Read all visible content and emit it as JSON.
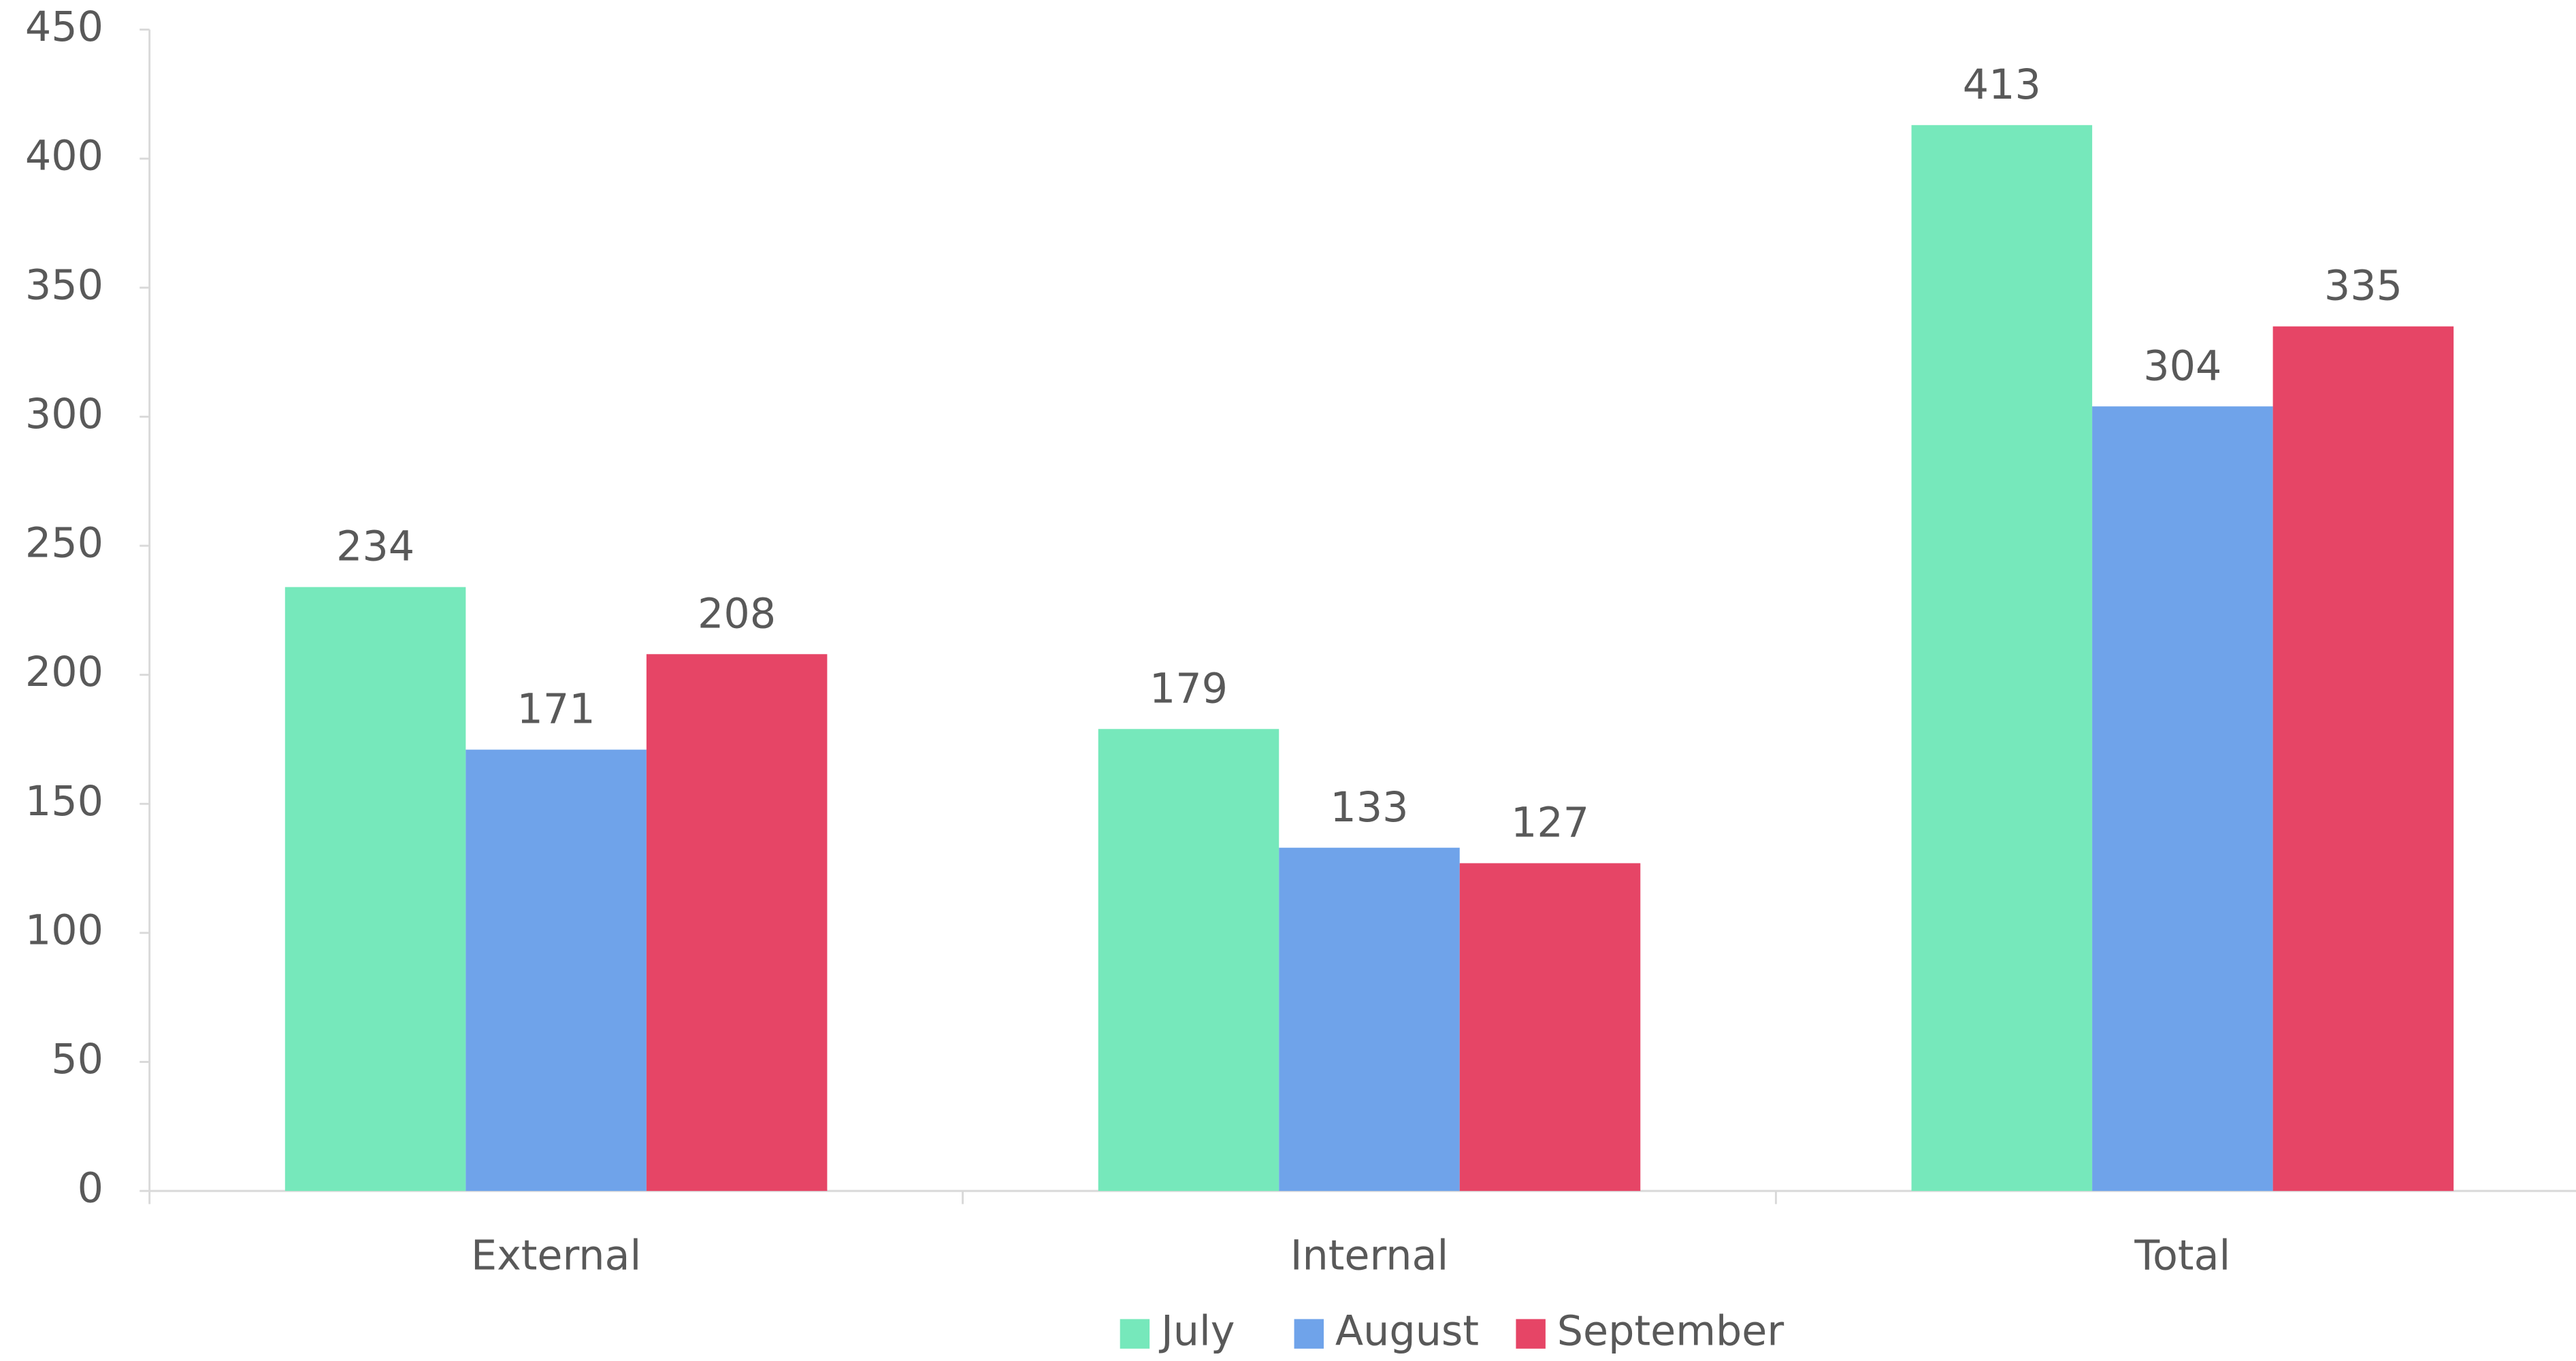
{
  "chart_data": {
    "type": "bar",
    "categories": [
      "External",
      "Internal",
      "Total"
    ],
    "series": [
      {
        "name": "July",
        "color": "#76e8bb",
        "values": [
          234,
          179,
          413
        ]
      },
      {
        "name": "August",
        "color": "#6fa3ea",
        "values": [
          171,
          133,
          304
        ]
      },
      {
        "name": "September",
        "color": "#e64566",
        "values": [
          208,
          127,
          335
        ]
      }
    ],
    "ylim": [
      0,
      450
    ],
    "yticks": [
      0,
      50,
      100,
      150,
      200,
      250,
      300,
      350,
      400,
      450
    ],
    "grid": false,
    "legend": "bottom"
  }
}
